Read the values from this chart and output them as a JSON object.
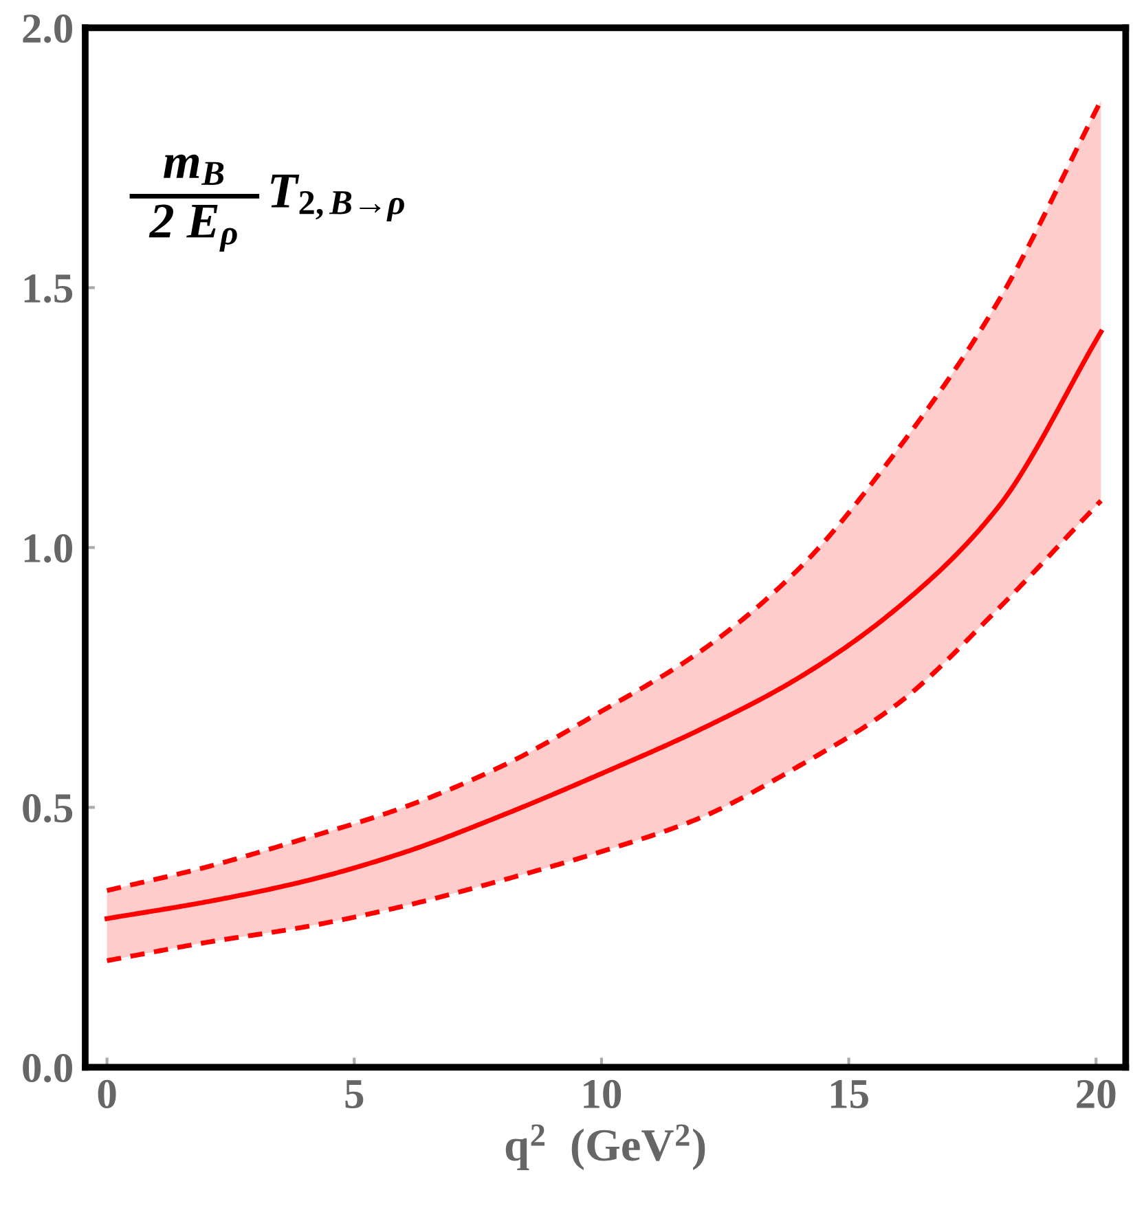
{
  "chart_data": {
    "type": "line",
    "xlabel": "q$^{2}$  (GeV$^{2}$)",
    "annotations": [
      "m$_{B}$",
      "2 E$_{ρ}$",
      "T$_{2,B→ρ}$"
    ],
    "x": [
      0,
      2,
      4,
      6,
      8,
      10,
      12,
      14,
      16,
      18,
      20.1
    ],
    "series": [
      {
        "color": "#ff0000",
        "line_style": "solid",
        "values": [
          0.286,
          0.318,
          0.358,
          0.413,
          0.485,
          0.565,
          0.65,
          0.75,
          0.885,
          1.075,
          1.415
        ],
        "lower": [
          0.205,
          0.24,
          0.27,
          0.31,
          0.36,
          0.415,
          0.48,
          0.58,
          0.7,
          0.88,
          1.09
        ],
        "upper": [
          0.34,
          0.385,
          0.44,
          0.5,
          0.58,
          0.685,
          0.8,
          0.96,
          1.19,
          1.47,
          1.86
        ]
      },
      {
        "color": "#ff0000",
        "line_style": "dashed",
        "values": [
          0.34,
          0.385,
          0.44,
          0.5,
          0.58,
          0.685,
          0.8,
          0.96,
          1.19,
          1.47,
          1.86
        ]
      },
      {
        "color": "#ff0000",
        "line_style": "dashed",
        "values": [
          0.205,
          0.24,
          0.27,
          0.31,
          0.36,
          0.415,
          0.48,
          0.58,
          0.7,
          0.88,
          1.09
        ]
      }
    ],
    "xlim": [
      -0.44,
      20.6
    ],
    "ylim": [
      0,
      2
    ],
    "xticks": [
      0,
      5,
      10,
      15,
      20
    ],
    "yticks": [
      {
        "value": 0,
        "label": "0.0"
      },
      {
        "value": 0.5,
        "label": "0.5"
      },
      {
        "value": 1,
        "label": "1.0"
      },
      {
        "value": 1.5,
        "label": "1.5"
      },
      {
        "value": 2,
        "label": "2.0"
      }
    ],
    "grid": false
  }
}
